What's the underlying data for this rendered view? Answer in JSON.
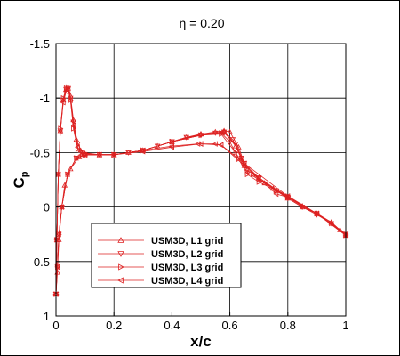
{
  "chart_data": {
    "type": "line",
    "title": "η = 0.20",
    "xlabel": "x/c",
    "ylabel": "C",
    "ylabel_subscript": "p",
    "xlim": [
      0,
      1
    ],
    "ylim": [
      1,
      -1.5
    ],
    "y_axis_inverted": true,
    "grid": true,
    "legend_position": "lower-left",
    "x_ticks": [
      "0",
      "0.2",
      "0.4",
      "0.6",
      "0.8",
      "1"
    ],
    "y_ticks": [
      "-1.5",
      "-1",
      "-0.5",
      "0",
      "0.5",
      "1"
    ],
    "line_color": "#dd2222",
    "series": [
      {
        "name": "USM3D, L1 grid",
        "marker": "triangle-up",
        "upper": [
          [
            0,
            0.8
          ],
          [
            0.003,
            0.3
          ],
          [
            0.008,
            -0.3
          ],
          [
            0.015,
            -0.7
          ],
          [
            0.025,
            -0.98
          ],
          [
            0.035,
            -1.08
          ],
          [
            0.042,
            -1.09
          ],
          [
            0.05,
            -1.02
          ],
          [
            0.06,
            -0.8
          ],
          [
            0.07,
            -0.62
          ],
          [
            0.085,
            -0.52
          ],
          [
            0.1,
            -0.49
          ],
          [
            0.15,
            -0.48
          ],
          [
            0.2,
            -0.48
          ],
          [
            0.25,
            -0.5
          ],
          [
            0.3,
            -0.52
          ],
          [
            0.35,
            -0.56
          ],
          [
            0.4,
            -0.6
          ],
          [
            0.45,
            -0.64
          ],
          [
            0.5,
            -0.67
          ],
          [
            0.55,
            -0.69
          ],
          [
            0.58,
            -0.7
          ],
          [
            0.6,
            -0.69
          ],
          [
            0.63,
            -0.55
          ],
          [
            0.65,
            -0.4
          ],
          [
            0.68,
            -0.3
          ],
          [
            0.72,
            -0.22
          ],
          [
            0.76,
            -0.15
          ],
          [
            0.8,
            -0.08
          ],
          [
            0.85,
            0.0
          ],
          [
            0.9,
            0.06
          ],
          [
            0.95,
            0.14
          ],
          [
            0.98,
            0.21
          ],
          [
            1.0,
            0.25
          ]
        ],
        "lower": [
          [
            0,
            0.8
          ],
          [
            0.005,
            0.6
          ],
          [
            0.01,
            0.3
          ],
          [
            0.02,
            0.0
          ],
          [
            0.03,
            -0.2
          ],
          [
            0.05,
            -0.35
          ],
          [
            0.08,
            -0.46
          ],
          [
            0.1,
            -0.48
          ],
          [
            0.2,
            -0.48
          ],
          [
            0.3,
            -0.52
          ],
          [
            0.4,
            -0.6
          ],
          [
            0.5,
            -0.67
          ],
          [
            0.58,
            -0.69
          ],
          [
            0.62,
            -0.56
          ],
          [
            0.65,
            -0.38
          ],
          [
            0.7,
            -0.27
          ],
          [
            0.75,
            -0.17
          ],
          [
            0.8,
            -0.09
          ],
          [
            0.85,
            -0.01
          ],
          [
            0.9,
            0.06
          ],
          [
            0.95,
            0.14
          ],
          [
            1.0,
            0.26
          ]
        ]
      },
      {
        "name": "USM3D, L2 grid",
        "marker": "triangle-down",
        "upper": [
          [
            0,
            0.8
          ],
          [
            0.003,
            0.3
          ],
          [
            0.008,
            -0.3
          ],
          [
            0.015,
            -0.7
          ],
          [
            0.025,
            -0.98
          ],
          [
            0.035,
            -1.08
          ],
          [
            0.042,
            -1.09
          ],
          [
            0.05,
            -1.0
          ],
          [
            0.06,
            -0.78
          ],
          [
            0.075,
            -0.58
          ],
          [
            0.09,
            -0.5
          ],
          [
            0.15,
            -0.48
          ],
          [
            0.2,
            -0.48
          ],
          [
            0.25,
            -0.5
          ],
          [
            0.3,
            -0.52
          ],
          [
            0.35,
            -0.56
          ],
          [
            0.4,
            -0.6
          ],
          [
            0.45,
            -0.64
          ],
          [
            0.5,
            -0.66
          ],
          [
            0.55,
            -0.68
          ],
          [
            0.58,
            -0.69
          ],
          [
            0.61,
            -0.62
          ],
          [
            0.64,
            -0.45
          ],
          [
            0.66,
            -0.34
          ],
          [
            0.7,
            -0.26
          ],
          [
            0.76,
            -0.15
          ],
          [
            0.8,
            -0.08
          ],
          [
            0.85,
            0.0
          ],
          [
            0.9,
            0.07
          ],
          [
            0.95,
            0.15
          ],
          [
            1.0,
            0.25
          ]
        ],
        "lower": [
          [
            0,
            0.8
          ],
          [
            0.005,
            0.55
          ],
          [
            0.01,
            0.25
          ],
          [
            0.02,
            0.0
          ],
          [
            0.04,
            -0.3
          ],
          [
            0.07,
            -0.45
          ],
          [
            0.1,
            -0.48
          ],
          [
            0.2,
            -0.48
          ],
          [
            0.3,
            -0.52
          ],
          [
            0.4,
            -0.6
          ],
          [
            0.5,
            -0.66
          ],
          [
            0.58,
            -0.68
          ],
          [
            0.62,
            -0.58
          ],
          [
            0.65,
            -0.4
          ],
          [
            0.7,
            -0.27
          ],
          [
            0.8,
            -0.09
          ],
          [
            0.9,
            0.06
          ],
          [
            1.0,
            0.26
          ]
        ]
      },
      {
        "name": "USM3D, L3 grid",
        "marker": "triangle-right",
        "upper": [
          [
            0,
            0.8
          ],
          [
            0.003,
            0.3
          ],
          [
            0.008,
            -0.3
          ],
          [
            0.015,
            -0.72
          ],
          [
            0.025,
            -1.0
          ],
          [
            0.035,
            -1.09
          ],
          [
            0.042,
            -1.1
          ],
          [
            0.05,
            -0.98
          ],
          [
            0.06,
            -0.72
          ],
          [
            0.075,
            -0.53
          ],
          [
            0.09,
            -0.48
          ],
          [
            0.15,
            -0.48
          ],
          [
            0.2,
            -0.48
          ],
          [
            0.3,
            -0.52
          ],
          [
            0.4,
            -0.6
          ],
          [
            0.5,
            -0.66
          ],
          [
            0.57,
            -0.68
          ],
          [
            0.6,
            -0.6
          ],
          [
            0.63,
            -0.44
          ],
          [
            0.66,
            -0.3
          ],
          [
            0.7,
            -0.23
          ],
          [
            0.76,
            -0.15
          ],
          [
            0.8,
            -0.09
          ],
          [
            0.85,
            -0.01
          ],
          [
            0.9,
            0.06
          ],
          [
            0.95,
            0.15
          ],
          [
            1.0,
            0.25
          ]
        ],
        "lower": [
          [
            0,
            0.8
          ],
          [
            0.005,
            0.55
          ],
          [
            0.01,
            0.25
          ],
          [
            0.02,
            0.0
          ],
          [
            0.04,
            -0.3
          ],
          [
            0.07,
            -0.45
          ],
          [
            0.1,
            -0.48
          ],
          [
            0.2,
            -0.48
          ],
          [
            0.3,
            -0.52
          ],
          [
            0.4,
            -0.6
          ],
          [
            0.5,
            -0.66
          ],
          [
            0.57,
            -0.67
          ],
          [
            0.62,
            -0.5
          ],
          [
            0.66,
            -0.32
          ],
          [
            0.7,
            -0.25
          ],
          [
            0.8,
            -0.1
          ],
          [
            0.9,
            0.06
          ],
          [
            1.0,
            0.26
          ]
        ]
      },
      {
        "name": "USM3D, L4 grid",
        "marker": "triangle-left",
        "upper": [
          [
            0,
            0.8
          ],
          [
            0.003,
            0.3
          ],
          [
            0.008,
            -0.3
          ],
          [
            0.015,
            -0.7
          ],
          [
            0.025,
            -0.96
          ],
          [
            0.035,
            -1.06
          ],
          [
            0.042,
            -1.07
          ],
          [
            0.05,
            -0.98
          ],
          [
            0.06,
            -0.75
          ],
          [
            0.075,
            -0.55
          ],
          [
            0.09,
            -0.48
          ],
          [
            0.15,
            -0.48
          ],
          [
            0.2,
            -0.48
          ],
          [
            0.3,
            -0.52
          ],
          [
            0.4,
            -0.56
          ],
          [
            0.49,
            -0.58
          ],
          [
            0.5,
            -0.58
          ],
          [
            0.55,
            -0.58
          ],
          [
            0.57,
            -0.57
          ],
          [
            0.65,
            -0.38
          ],
          [
            0.76,
            -0.12
          ],
          [
            0.8,
            -0.09
          ],
          [
            0.9,
            0.06
          ],
          [
            1.0,
            0.25
          ]
        ],
        "lower": [
          [
            0,
            0.8
          ],
          [
            0.005,
            0.55
          ],
          [
            0.01,
            0.25
          ],
          [
            0.02,
            0.0
          ],
          [
            0.04,
            -0.3
          ],
          [
            0.07,
            -0.45
          ],
          [
            0.1,
            -0.48
          ],
          [
            0.2,
            -0.48
          ],
          [
            0.3,
            -0.51
          ],
          [
            0.4,
            -0.55
          ],
          [
            0.5,
            -0.58
          ],
          [
            0.57,
            -0.57
          ],
          [
            0.65,
            -0.4
          ],
          [
            0.8,
            -0.1
          ],
          [
            0.9,
            0.06
          ],
          [
            1.0,
            0.26
          ]
        ]
      }
    ]
  }
}
